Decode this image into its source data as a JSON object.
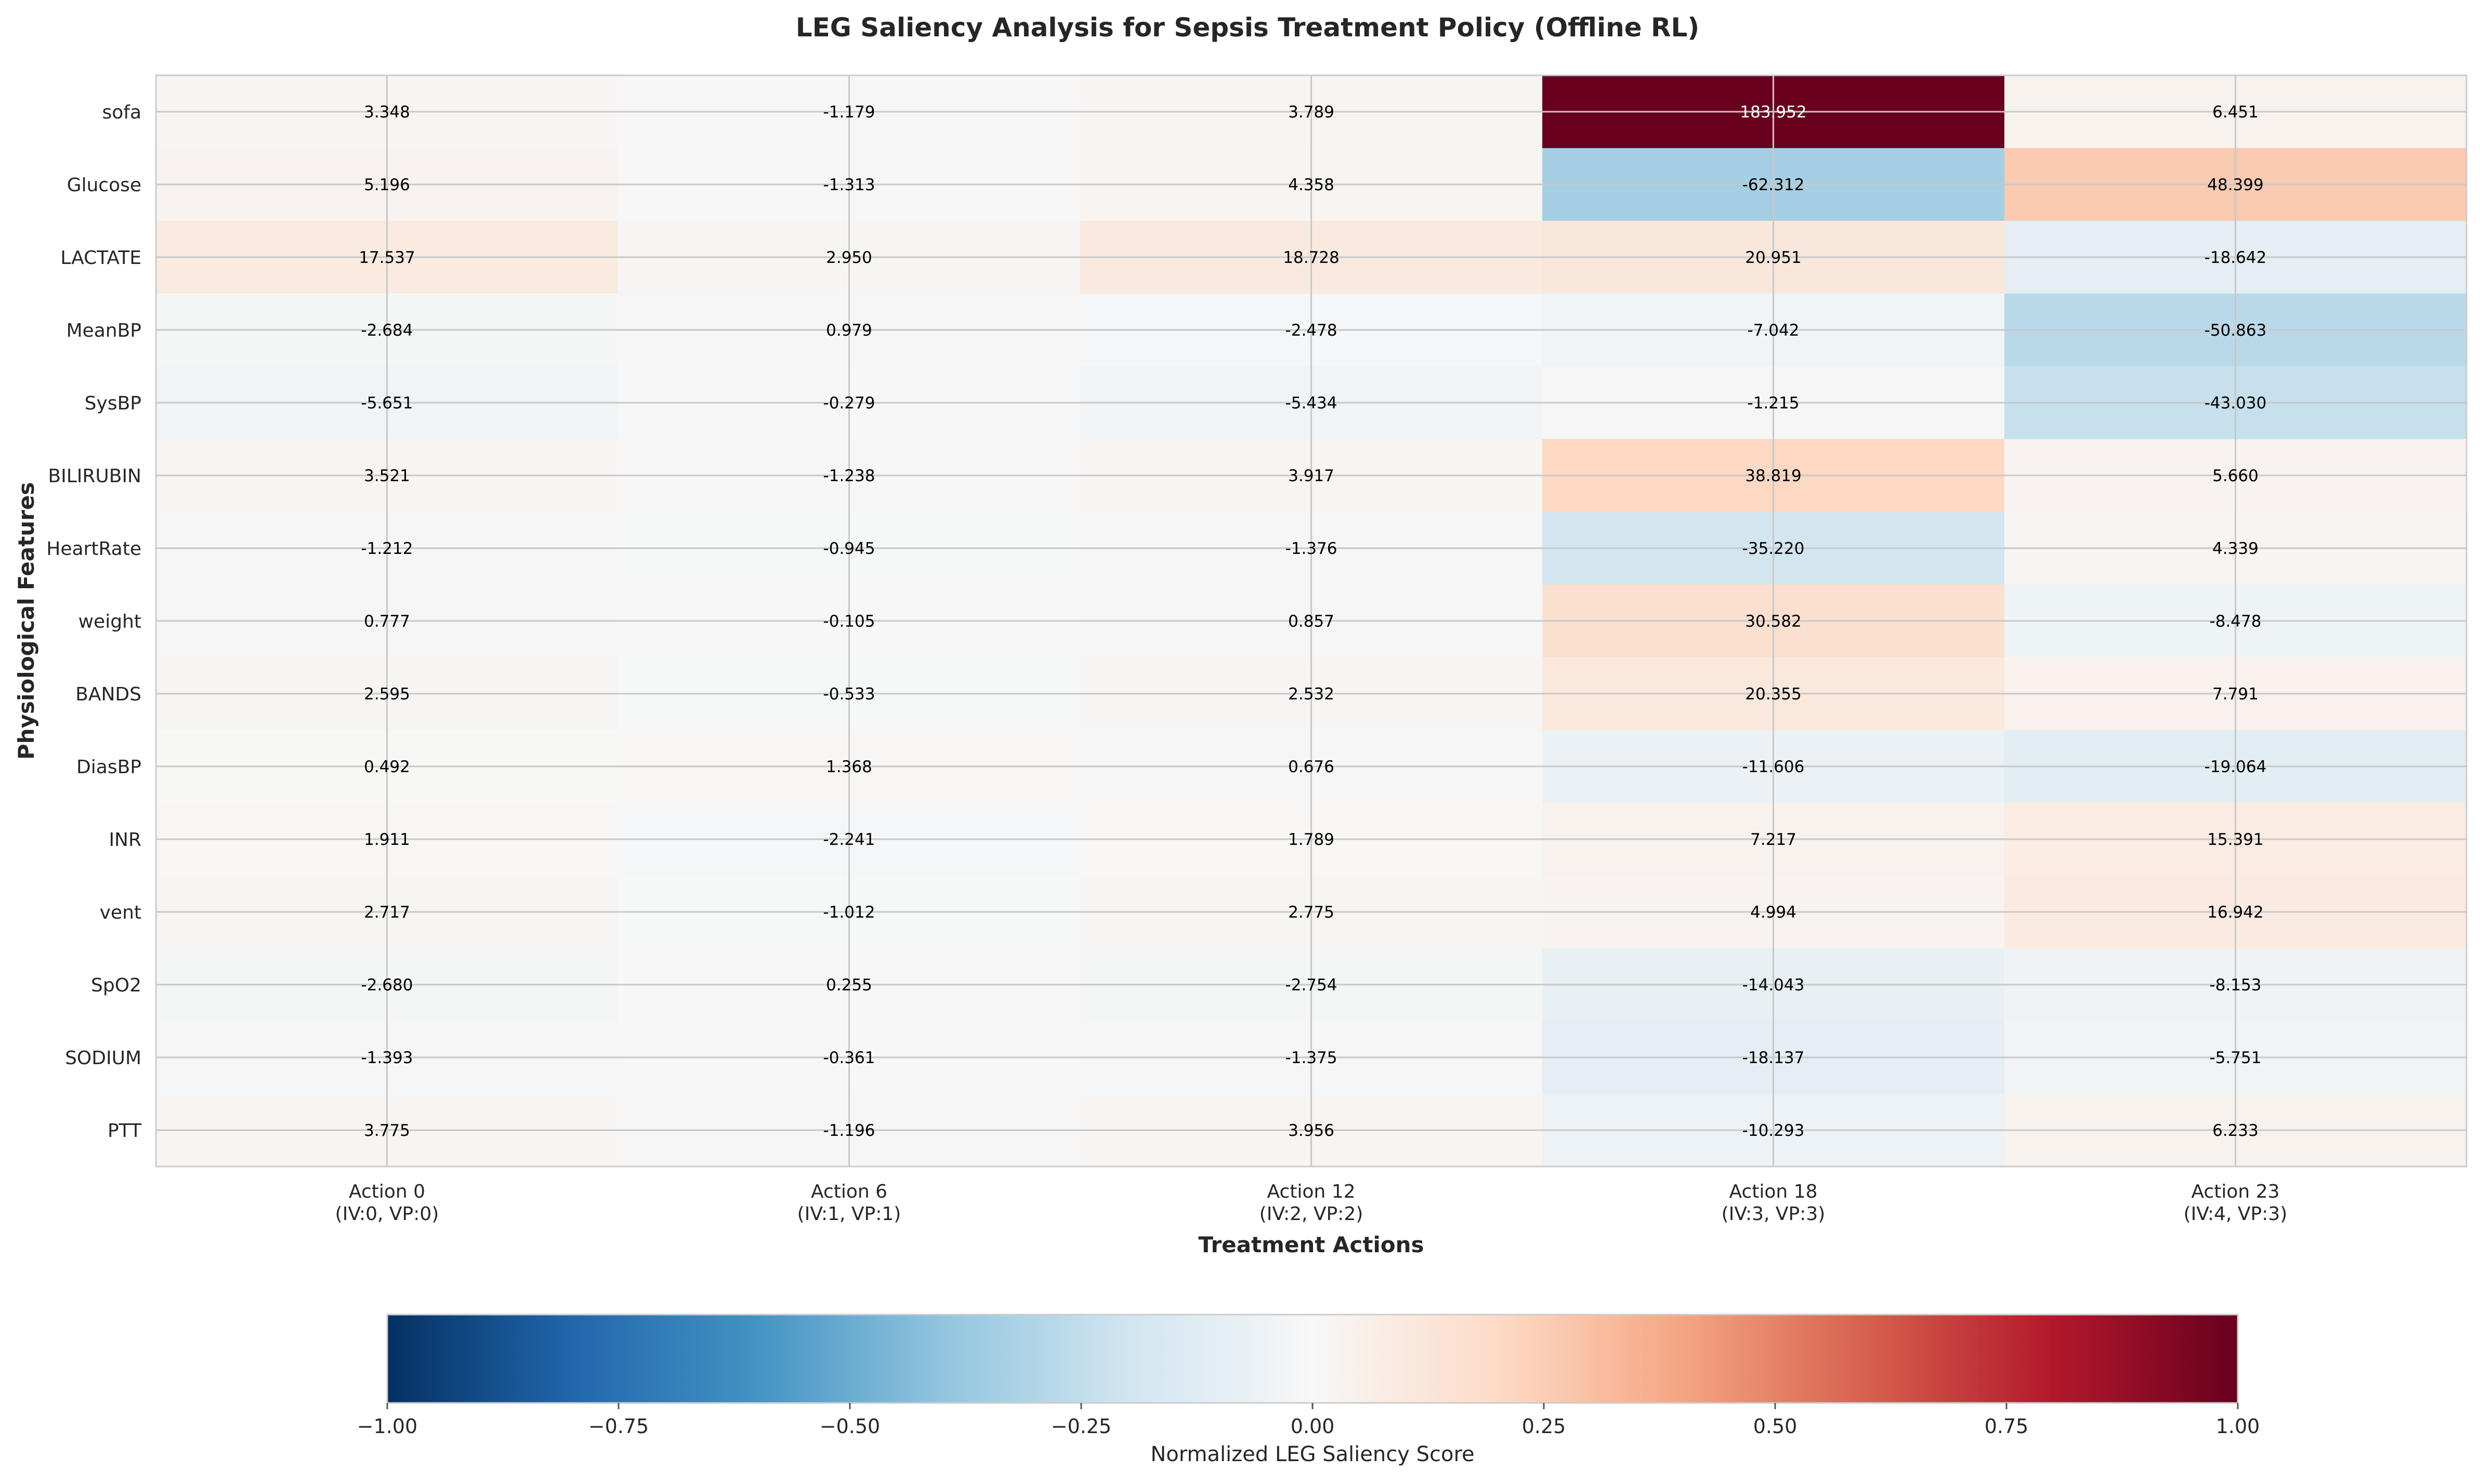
{
  "chart_data": {
    "type": "heatmap",
    "title": "LEG Saliency Analysis for Sepsis Treatment Policy (Offline RL)",
    "xlabel": "Treatment Actions",
    "ylabel": "Physiological Features",
    "x_categories": [
      {
        "line1": "Action 0",
        "line2": "(IV:0, VP:0)"
      },
      {
        "line1": "Action 6",
        "line2": "(IV:1, VP:1)"
      },
      {
        "line1": "Action 12",
        "line2": "(IV:2, VP:2)"
      },
      {
        "line1": "Action 18",
        "line2": "(IV:3, VP:3)"
      },
      {
        "line1": "Action 23",
        "line2": "(IV:4, VP:3)"
      }
    ],
    "y_categories": [
      "sofa",
      "Glucose",
      "LACTATE",
      "MeanBP",
      "SysBP",
      "BILIRUBIN",
      "HeartRate",
      "weight",
      "BANDS",
      "DiasBP",
      "INR",
      "vent",
      "SpO2",
      "SODIUM",
      "PTT"
    ],
    "values": [
      [
        3.348,
        -1.179,
        3.789,
        183.952,
        6.451
      ],
      [
        5.196,
        -1.313,
        4.358,
        -62.312,
        48.399
      ],
      [
        17.537,
        2.95,
        18.728,
        20.951,
        -18.642
      ],
      [
        -2.684,
        0.979,
        -2.478,
        -7.042,
        -50.863
      ],
      [
        -5.651,
        -0.279,
        -5.434,
        -1.215,
        -43.03
      ],
      [
        3.521,
        -1.238,
        3.917,
        38.819,
        5.66
      ],
      [
        -1.212,
        -0.945,
        -1.376,
        -35.22,
        4.339
      ],
      [
        0.777,
        -0.105,
        0.857,
        30.582,
        -8.478
      ],
      [
        2.595,
        -0.533,
        2.532,
        20.355,
        7.791
      ],
      [
        0.492,
        1.368,
        0.676,
        -11.606,
        -19.064
      ],
      [
        1.911,
        -2.241,
        1.789,
        7.217,
        15.391
      ],
      [
        2.717,
        -1.012,
        2.775,
        4.994,
        16.942
      ],
      [
        -2.68,
        0.255,
        -2.754,
        -14.043,
        -8.153
      ],
      [
        -1.393,
        -0.361,
        -1.375,
        -18.137,
        -5.751
      ],
      [
        3.775,
        -1.196,
        3.956,
        -10.293,
        6.233
      ]
    ],
    "value_labels": [
      [
        "3.348",
        "-1.179",
        "3.789",
        "183.952",
        "6.451"
      ],
      [
        "5.196",
        "-1.313",
        "4.358",
        "-62.312",
        "48.399"
      ],
      [
        "17.537",
        "2.950",
        "18.728",
        "20.951",
        "-18.642"
      ],
      [
        "-2.684",
        "0.979",
        "-2.478",
        "-7.042",
        "-50.863"
      ],
      [
        "-5.651",
        "-0.279",
        "-5.434",
        "-1.215",
        "-43.030"
      ],
      [
        "3.521",
        "-1.238",
        "3.917",
        "38.819",
        "5.660"
      ],
      [
        "-1.212",
        "-0.945",
        "-1.376",
        "-35.220",
        "4.339"
      ],
      [
        "0.777",
        "-0.105",
        "0.857",
        "30.582",
        "-8.478"
      ],
      [
        "2.595",
        "-0.533",
        "2.532",
        "20.355",
        "7.791"
      ],
      [
        "0.492",
        "1.368",
        "0.676",
        "-11.606",
        "-19.064"
      ],
      [
        "1.911",
        "-2.241",
        "1.789",
        "7.217",
        "15.391"
      ],
      [
        "2.717",
        "-1.012",
        "2.775",
        "4.994",
        "16.942"
      ],
      [
        "-2.680",
        "0.255",
        "-2.754",
        "-14.043",
        "-8.153"
      ],
      [
        "-1.393",
        "-0.361",
        "-1.375",
        "-18.137",
        "-5.751"
      ],
      [
        "3.775",
        "-1.196",
        "3.956",
        "-10.293",
        "6.233"
      ]
    ],
    "colormap": "RdBu_r",
    "color_range": [
      -1.0,
      1.0
    ],
    "grid": true,
    "colorbar": {
      "label": "Normalized LEG Saliency Score",
      "orientation": "horizontal",
      "placement": "bottom",
      "ticks": [
        -1.0,
        -0.75,
        -0.5,
        -0.25,
        0.0,
        0.25,
        0.5,
        0.75,
        1.0
      ],
      "tick_labels": [
        "−1.00",
        "−0.75",
        "−0.50",
        "−0.25",
        "0.00",
        "0.25",
        "0.50",
        "0.75",
        "1.00"
      ]
    }
  }
}
